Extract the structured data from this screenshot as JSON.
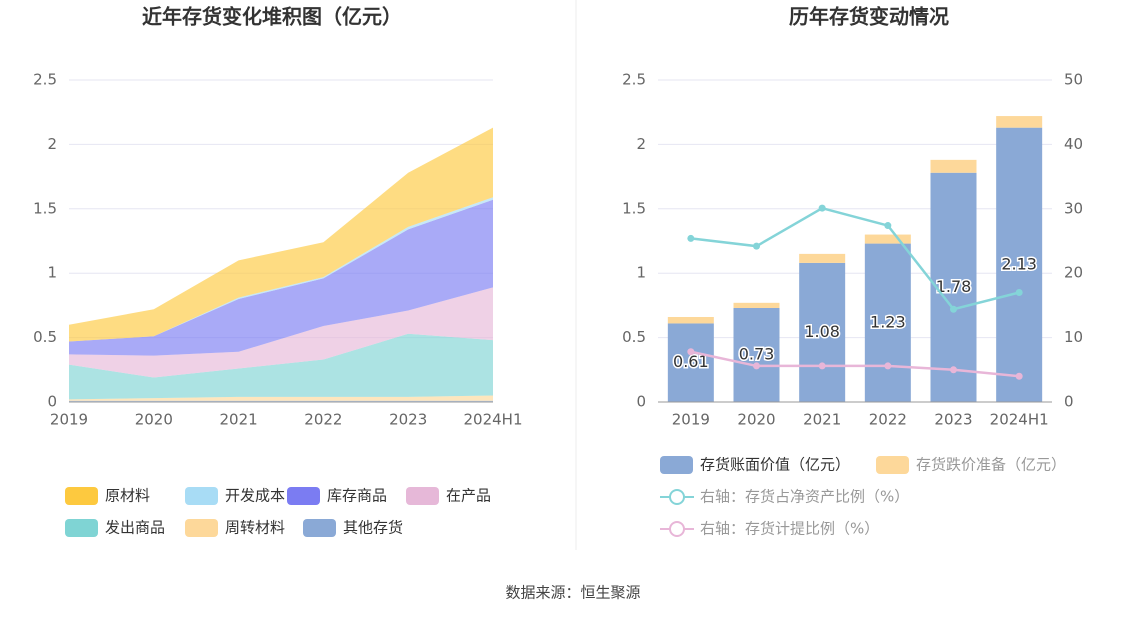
{
  "source": "数据来源：恒生聚源",
  "chart_data": [
    {
      "type": "area",
      "stacked": true,
      "title": "近年存货变化堆积图（亿元）",
      "categories": [
        "2019",
        "2020",
        "2021",
        "2022",
        "2023",
        "2024H1"
      ],
      "series": [
        {
          "name": "原材料",
          "color": "#fdc93f",
          "values": [
            0.13,
            0.21,
            0.29,
            0.27,
            0.42,
            0.54
          ]
        },
        {
          "name": "开发成本",
          "color": "#a8dcf5",
          "values": [
            0.0,
            0.0,
            0.01,
            0.01,
            0.02,
            0.02
          ]
        },
        {
          "name": "库存商品",
          "color": "#7b7cf2",
          "values": [
            0.1,
            0.15,
            0.41,
            0.37,
            0.63,
            0.68
          ]
        },
        {
          "name": "在产品",
          "color": "#e6b8d8",
          "values": [
            0.08,
            0.17,
            0.13,
            0.26,
            0.18,
            0.41
          ]
        },
        {
          "name": "发出商品",
          "color": "#7fd4d4",
          "values": [
            0.27,
            0.16,
            0.22,
            0.29,
            0.49,
            0.43
          ]
        },
        {
          "name": "周转材料",
          "color": "#fdd89a",
          "values": [
            0.01,
            0.02,
            0.03,
            0.03,
            0.03,
            0.04
          ]
        },
        {
          "name": "其他存货",
          "color": "#8aa9d6",
          "values": [
            0.01,
            0.01,
            0.01,
            0.01,
            0.01,
            0.01
          ]
        }
      ],
      "ylim": [
        0,
        2.5
      ],
      "yticks": [
        0,
        0.5,
        1,
        1.5,
        2,
        2.5
      ],
      "grid": true
    },
    {
      "type": "bar",
      "stacked": true,
      "title": "历年存货变动情况",
      "categories": [
        "2019",
        "2020",
        "2021",
        "2022",
        "2023",
        "2024H1"
      ],
      "series": [
        {
          "name": "存货账面价值（亿元）",
          "color": "#8aa9d6",
          "values": [
            0.61,
            0.73,
            1.08,
            1.23,
            1.78,
            2.13
          ]
        },
        {
          "name": "存货跌价准备（亿元）",
          "color": "#fdd89a",
          "values": [
            0.05,
            0.04,
            0.07,
            0.07,
            0.1,
            0.09
          ]
        },
        {
          "name": "右轴：存货占净资产比例（%）",
          "type": "line",
          "axis": "y2",
          "color": "#84d4d8",
          "values": [
            25.4,
            24.2,
            30.1,
            27.4,
            14.4,
            17.0
          ]
        },
        {
          "name": "右轴：存货计提比例（%）",
          "type": "line",
          "axis": "y2",
          "color": "#e8b6d8",
          "values": [
            7.8,
            5.6,
            5.6,
            5.6,
            5.0,
            4.0
          ]
        }
      ],
      "ylim": [
        0,
        2.5
      ],
      "yticks": [
        0,
        0.5,
        1,
        1.5,
        2,
        2.5
      ],
      "y2lim": [
        0,
        50
      ],
      "y2ticks": [
        0,
        10,
        20,
        30,
        40,
        50
      ],
      "grid": true
    }
  ]
}
